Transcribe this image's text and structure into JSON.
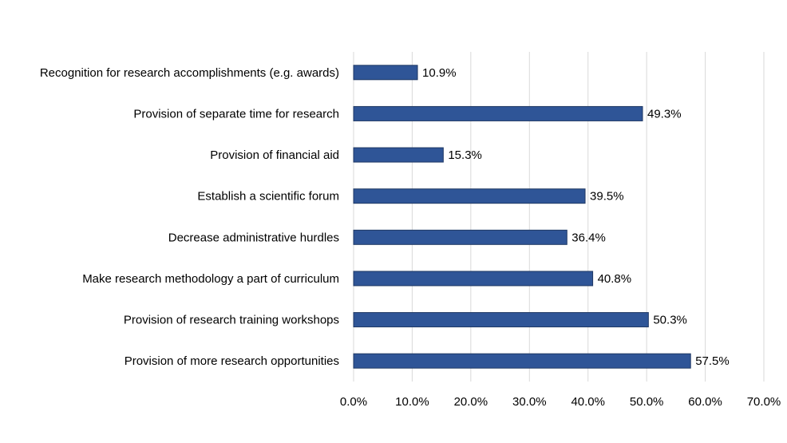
{
  "chart_data": {
    "type": "bar",
    "orientation": "horizontal",
    "title": "",
    "xlabel": "",
    "ylabel": "",
    "categories": [
      "Recognition for research accomplishments (e.g. awards)",
      "Provision of separate time for research",
      "Provision of financial aid",
      "Establish a scientific forum",
      "Decrease administrative hurdles",
      "Make research methodology a part of curriculum",
      "Provision of research training workshops",
      "Provision of more research opportunities"
    ],
    "values": [
      10.9,
      49.3,
      15.3,
      39.5,
      36.4,
      40.8,
      50.3,
      57.5
    ],
    "data_labels": [
      "10.9%",
      "49.3%",
      "15.3%",
      "39.5%",
      "36.4%",
      "40.8%",
      "50.3%",
      "57.5%"
    ],
    "xlim": [
      0,
      70
    ],
    "x_ticks": [
      0,
      10,
      20,
      30,
      40,
      50,
      60,
      70
    ],
    "x_tick_labels": [
      "0.0%",
      "10.0%",
      "20.0%",
      "30.0%",
      "40.0%",
      "50.0%",
      "60.0%",
      "70.0%"
    ],
    "grid": "vertical",
    "legend": "none",
    "colors": {
      "bar_fill": "#2F5597",
      "bar_border": "#1F3864",
      "grid": "#D9D9D9"
    }
  }
}
